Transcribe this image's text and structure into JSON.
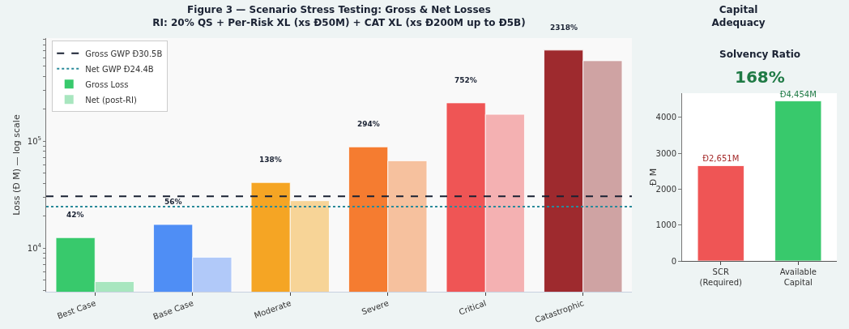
{
  "chart_data": [
    {
      "type": "bar",
      "title": "Figure 3 — Scenario Stress Testing: Gross & Net Losses\nRI: 20% QS + Per-Risk XL (xs Đ50M) + CAT XL (xs Đ200M up to Đ5B)",
      "ylabel": "Loss (Đ M) — log scale",
      "categories": [
        "Best Case",
        "Base Case",
        "Moderate",
        "Severe",
        "Critical",
        "Catastrophic"
      ],
      "series": [
        {
          "name": "Gross Loss",
          "color": "#38c96c",
          "colors": [
            "#38c96c",
            "#4f8ef5",
            "#f5a524",
            "#f57c30",
            "#ef5555",
            "#9e2a2e"
          ],
          "values": [
            12500,
            16600,
            41000,
            88300,
            228000,
            710000
          ]
        },
        {
          "name": "Net (post-RI)",
          "color": "#a8e6bf",
          "colors": [
            "#a8e6bf",
            "#b1c9f9",
            "#f7d497",
            "#f6c19e",
            "#f4b1b2",
            "#cfa3a3"
          ],
          "values": [
            4850,
            8200,
            27700,
            65500,
            178000,
            565000
          ]
        }
      ],
      "annotations": [
        "42%",
        "56%",
        "138%",
        "294%",
        "752%",
        "2318%"
      ],
      "ref_lines": [
        {
          "axis": "y",
          "value": 30500,
          "label": "Gross GWP Đ30.5B",
          "color": "#1a2233",
          "line_style": "dashed"
        },
        {
          "axis": "y",
          "value": 24400,
          "label": "Net GWP Đ24.4B",
          "color": "#2a8a9a",
          "line_style": "dotted"
        }
      ],
      "log": "y",
      "ylim": [
        3900,
        920000
      ],
      "yticks": [
        {
          "value": 4000,
          "label": null
        },
        {
          "value": 5000,
          "label": null
        },
        {
          "value": 6000,
          "label": null
        },
        {
          "value": 7000,
          "label": null
        },
        {
          "value": 8000,
          "label": null
        },
        {
          "value": 9000,
          "label": null
        },
        {
          "value": 10000,
          "label": "10$^{4}$"
        },
        {
          "value": 20000,
          "label": null
        },
        {
          "value": 30000,
          "label": null
        },
        {
          "value": 40000,
          "label": null
        },
        {
          "value": 50000,
          "label": null
        },
        {
          "value": 60000,
          "label": null
        },
        {
          "value": 70000,
          "label": null
        },
        {
          "value": 80000,
          "label": null
        },
        {
          "value": 90000,
          "label": null
        },
        {
          "value": 100000,
          "label": "10$^{5}$"
        },
        {
          "value": 200000,
          "label": null
        },
        {
          "value": 300000,
          "label": null
        },
        {
          "value": 400000,
          "label": null
        },
        {
          "value": 500000,
          "label": null
        },
        {
          "value": 600000,
          "label": null
        },
        {
          "value": 700000,
          "label": null
        },
        {
          "value": 800000,
          "label": null
        },
        {
          "value": 900000,
          "label": null
        }
      ],
      "grid": false,
      "legend": "top left"
    },
    {
      "type": "bar",
      "title": "Capital\nAdequacy",
      "subtitle": "Solvency Ratio",
      "ylabel": "Đ M",
      "categories": [
        "SCR\n(Required)",
        "Available\nCapital"
      ],
      "values": [
        2651,
        4454
      ],
      "colors": [
        "#ef5555",
        "#38c96c"
      ],
      "value_labels": [
        "Đ2,651M",
        "Đ4,454M"
      ],
      "annotations": [
        "168%"
      ],
      "ylim": [
        0,
        4670
      ],
      "yticks": [
        0,
        1000,
        2000,
        3000,
        4000
      ],
      "grid": false,
      "legend": false
    }
  ]
}
